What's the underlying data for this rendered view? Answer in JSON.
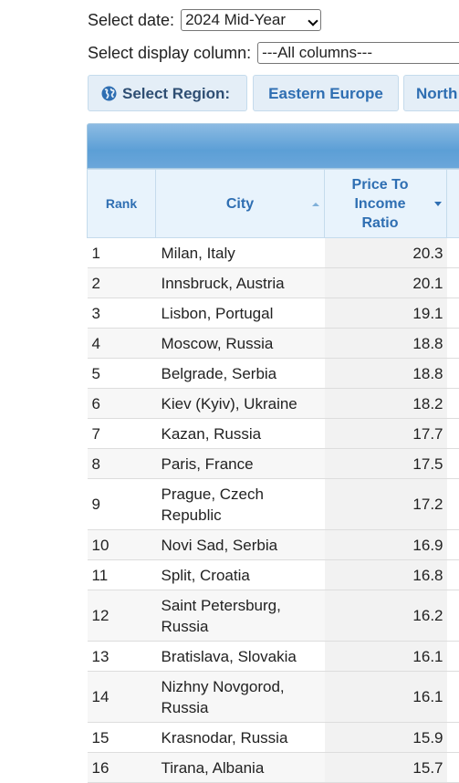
{
  "controls": {
    "date_label": "Select date:",
    "date_value": "2024 Mid-Year",
    "column_label": "Select display column:",
    "column_value": "---All columns---"
  },
  "region_tabs": {
    "select_label": "Select Region:",
    "items": [
      "Eastern Europe",
      "North"
    ]
  },
  "table": {
    "headers": {
      "rank": "Rank",
      "city": "City",
      "ratio": "Price To Income Ratio"
    },
    "rows": [
      {
        "rank": "1",
        "city": "Milan, Italy",
        "ratio": "20.3"
      },
      {
        "rank": "2",
        "city": "Innsbruck, Austria",
        "ratio": "20.1"
      },
      {
        "rank": "3",
        "city": "Lisbon, Portugal",
        "ratio": "19.1"
      },
      {
        "rank": "4",
        "city": "Moscow, Russia",
        "ratio": "18.8"
      },
      {
        "rank": "5",
        "city": "Belgrade, Serbia",
        "ratio": "18.8"
      },
      {
        "rank": "6",
        "city": "Kiev (Kyiv), Ukraine",
        "ratio": "18.2"
      },
      {
        "rank": "7",
        "city": "Kazan, Russia",
        "ratio": "17.7"
      },
      {
        "rank": "8",
        "city": "Paris, France",
        "ratio": "17.5"
      },
      {
        "rank": "9",
        "city": "Prague, Czech Republic",
        "ratio": "17.2"
      },
      {
        "rank": "10",
        "city": "Novi Sad, Serbia",
        "ratio": "16.9"
      },
      {
        "rank": "11",
        "city": "Split, Croatia",
        "ratio": "16.8"
      },
      {
        "rank": "12",
        "city": "Saint Petersburg, Russia",
        "ratio": "16.2"
      },
      {
        "rank": "13",
        "city": "Bratislava, Slovakia",
        "ratio": "16.1"
      },
      {
        "rank": "14",
        "city": "Nizhny Novgorod, Russia",
        "ratio": "16.1"
      },
      {
        "rank": "15",
        "city": "Krasnodar, Russia",
        "ratio": "15.9"
      },
      {
        "rank": "16",
        "city": "Tirana, Albania",
        "ratio": "15.7"
      }
    ]
  },
  "colors": {
    "accent": "#2e6eb2",
    "header_bg": "#e8f3fc",
    "caption_bar": "#5c9fd6"
  }
}
